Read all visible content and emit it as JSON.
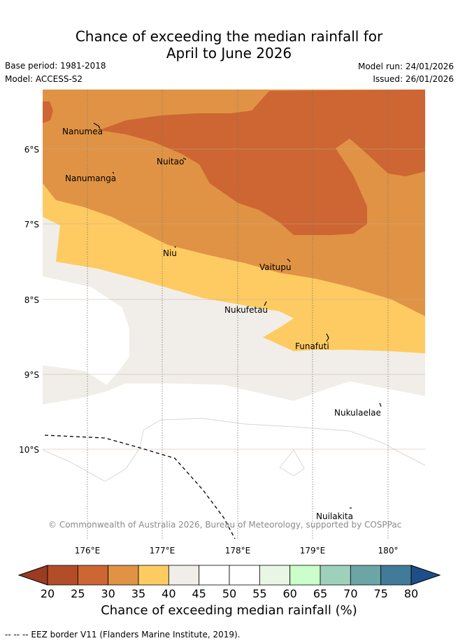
{
  "title_line1": "Chance of exceeding the median rainfall for",
  "title_line2": "April to June 2026",
  "meta": {
    "base_period": "Base period: 1981-2018",
    "model": "Model: ACCESS-S2",
    "model_run": "Model run: 24/01/2026",
    "issued": "Issued: 26/01/2026"
  },
  "axes": {
    "lat_labels": [
      "6°S",
      "7°S",
      "8°S",
      "9°S",
      "10°S"
    ],
    "lon_labels": [
      "176°E",
      "177°E",
      "178°E",
      "179°E",
      "180°"
    ]
  },
  "places": [
    "Nanumea",
    "Nuitao",
    "Nanumanga",
    "Niu",
    "Vaitupu",
    "Nukufetau",
    "Funafuti",
    "Nukulaelae",
    "Nuilakita"
  ],
  "copyright": "© Commonwealth of Australia 2026, Bureau of Meteorology, supported by COSPPac",
  "colorbar": {
    "ticks": [
      "20",
      "25",
      "30",
      "35",
      "40",
      "45",
      "50",
      "55",
      "60",
      "65",
      "70",
      "75",
      "80"
    ],
    "colors": [
      "#b34d27",
      "#cd6632",
      "#e09344",
      "#fecb62",
      "#f1eee9",
      "#ffffff",
      "#ffffff",
      "#e9f6e6",
      "#caffc9",
      "#9dd1bb",
      "#6ba5a5",
      "#427b98",
      "#1e4e8a"
    ],
    "label": "Chance of exceeding median rainfall (%)"
  },
  "legend_note": "-- -- -- EEZ border V11 (Flanders Marine Institute, 2019)."
}
